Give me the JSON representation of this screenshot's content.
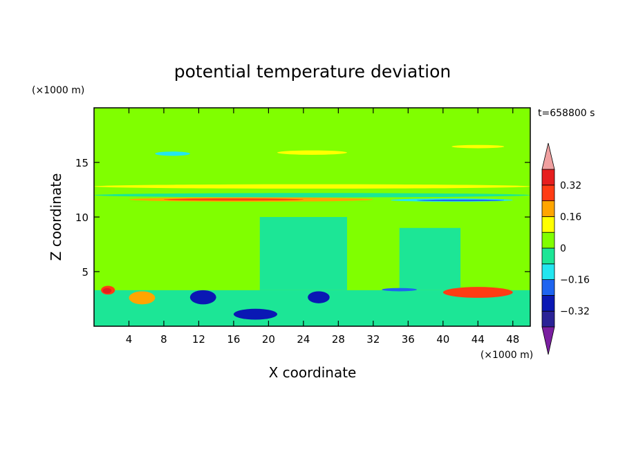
{
  "chart_data": {
    "type": "heatmap",
    "title": "potential temperature deviation",
    "xlabel": "X coordinate",
    "ylabel": "Z coordinate",
    "x_unit": "(×1000 m)",
    "y_unit": "(×1000 m)",
    "time_label": "t=658800 s",
    "xlim": [
      0,
      50
    ],
    "ylim": [
      0,
      20
    ],
    "x_ticks": [
      4,
      8,
      12,
      16,
      20,
      24,
      28,
      32,
      36,
      40,
      44,
      48
    ],
    "y_ticks": [
      5,
      10,
      15
    ],
    "colorbar": {
      "levels": [
        -0.4,
        -0.32,
        -0.24,
        -0.16,
        -0.08,
        0,
        0.08,
        0.16,
        0.24,
        0.32,
        0.4
      ],
      "labeled": [
        0.32,
        0.16,
        0,
        -0.16,
        -0.32
      ],
      "labels": [
        "0.32",
        "0.16",
        "0",
        "−0.16",
        "−0.32"
      ],
      "colors": [
        "#7a1fa0",
        "#2a2296",
        "#0a18b4",
        "#1e64f0",
        "#23e6f0",
        "#1ce696",
        "#80ff00",
        "#ffff00",
        "#ffa500",
        "#ff3c14",
        "#e61e1e",
        "#f0a0a0"
      ]
    },
    "regions": [
      {
        "level": 7,
        "z": [
          12.6,
          13.0
        ],
        "x": [
          0,
          50
        ]
      },
      {
        "level": 8,
        "z": [
          11.4,
          11.8
        ],
        "x": [
          4,
          32
        ]
      },
      {
        "level": 9,
        "z": [
          11.5,
          11.7
        ],
        "x": [
          8,
          24
        ]
      },
      {
        "level": 4,
        "z": [
          11.4,
          11.7
        ],
        "x": [
          34,
          48
        ]
      },
      {
        "level": 3,
        "z": [
          11.45,
          11.6
        ],
        "x": [
          37,
          47
        ]
      },
      {
        "level": 5,
        "z": [
          11.8,
          12.2
        ],
        "x": [
          0,
          50
        ]
      },
      {
        "level": 7,
        "z": [
          15.7,
          16.1
        ],
        "x": [
          21,
          29
        ]
      },
      {
        "level": 4,
        "z": [
          15.6,
          16.0
        ],
        "x": [
          7,
          11
        ]
      },
      {
        "level": 7,
        "z": [
          16.3,
          16.6
        ],
        "x": [
          41,
          47
        ]
      },
      {
        "level": 9,
        "z": [
          2.9,
          3.7
        ],
        "x": [
          0.8,
          2.4
        ]
      },
      {
        "level": 10,
        "z": [
          3.0,
          3.5
        ],
        "x": [
          1.0,
          2.0
        ]
      },
      {
        "level": 9,
        "z": [
          2.6,
          3.6
        ],
        "x": [
          40,
          48
        ]
      },
      {
        "level": 8,
        "z": [
          2.0,
          3.2
        ],
        "x": [
          4,
          7
        ]
      },
      {
        "level": 2,
        "z": [
          2.0,
          3.3
        ],
        "x": [
          11,
          14
        ]
      },
      {
        "level": 2,
        "z": [
          2.1,
          3.2
        ],
        "x": [
          24.5,
          27
        ]
      },
      {
        "level": 2,
        "z": [
          0.6,
          1.6
        ],
        "x": [
          16,
          21
        ]
      },
      {
        "level": 3,
        "z": [
          3.2,
          3.5
        ],
        "x": [
          33,
          37
        ]
      }
    ]
  }
}
